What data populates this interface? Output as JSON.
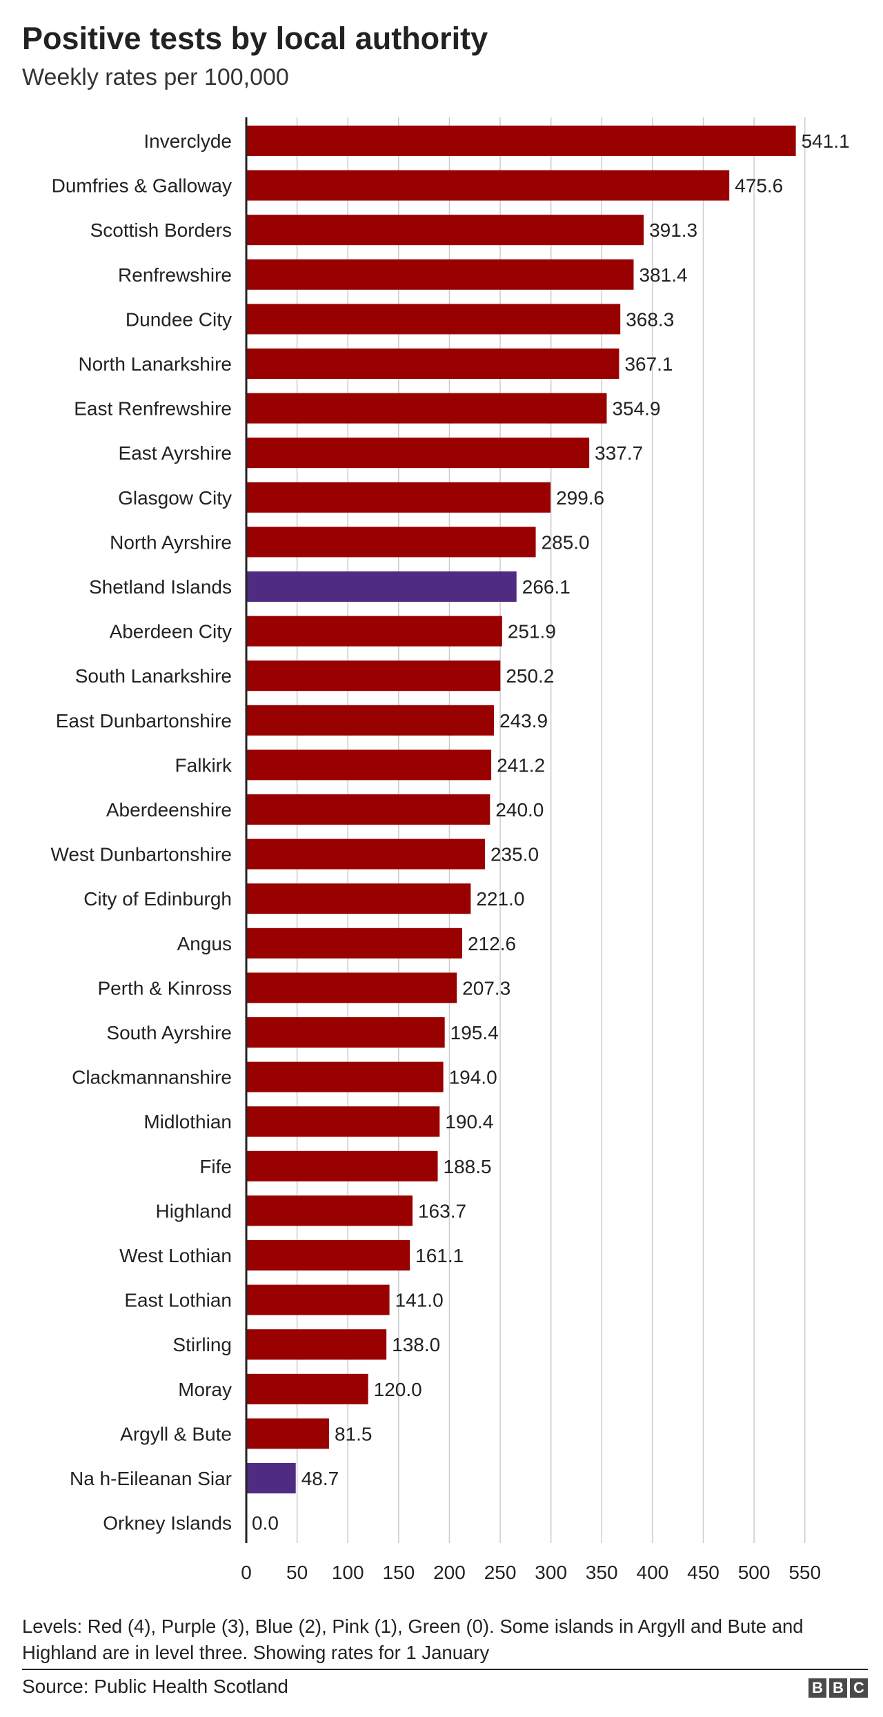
{
  "header": {
    "title": "Positive tests by local authority",
    "subtitle": "Weekly rates per 100,000"
  },
  "chart_data": {
    "type": "bar",
    "orientation": "horizontal",
    "categories": [
      "Inverclyde",
      "Dumfries & Galloway",
      "Scottish Borders",
      "Renfrewshire",
      "Dundee City",
      "North Lanarkshire",
      "East Renfrewshire",
      "East Ayrshire",
      "Glasgow City",
      "North Ayrshire",
      "Shetland Islands",
      "Aberdeen City",
      "South Lanarkshire",
      "East Dunbartonshire",
      "Falkirk",
      "Aberdeenshire",
      "West Dunbartonshire",
      "City of Edinburgh",
      "Angus",
      "Perth & Kinross",
      "South Ayrshire",
      "Clackmannanshire",
      "Midlothian",
      "Fife",
      "Highland",
      "West Lothian",
      "East Lothian",
      "Stirling",
      "Moray",
      "Argyll & Bute",
      "Na h-Eileanan Siar",
      "Orkney Islands"
    ],
    "values": [
      541.1,
      475.6,
      391.3,
      381.4,
      368.3,
      367.1,
      354.9,
      337.7,
      299.6,
      285.0,
      266.1,
      251.9,
      250.2,
      243.9,
      241.2,
      240.0,
      235.0,
      221.0,
      212.6,
      207.3,
      195.4,
      194.0,
      190.4,
      188.5,
      163.7,
      161.1,
      141.0,
      138.0,
      120.0,
      81.5,
      48.7,
      0.0
    ],
    "value_labels": [
      "541.1",
      "475.6",
      "391.3",
      "381.4",
      "368.3",
      "367.1",
      "354.9",
      "337.7",
      "299.6",
      "285.0",
      "266.1",
      "251.9",
      "250.2",
      "243.9",
      "241.2",
      "240.0",
      "235.0",
      "221.0",
      "212.6",
      "207.3",
      "195.4",
      "194.0",
      "190.4",
      "188.5",
      "163.7",
      "161.1",
      "141.0",
      "138.0",
      "120.0",
      "81.5",
      "48.7",
      "0.0"
    ],
    "levels": [
      "red",
      "red",
      "red",
      "red",
      "red",
      "red",
      "red",
      "red",
      "red",
      "red",
      "purple",
      "red",
      "red",
      "red",
      "red",
      "red",
      "red",
      "red",
      "red",
      "red",
      "red",
      "red",
      "red",
      "red",
      "red",
      "red",
      "red",
      "red",
      "red",
      "red",
      "purple",
      "green"
    ],
    "level_colors": {
      "red": "#990000",
      "purple": "#4f2c81",
      "green": "#00a650"
    },
    "xlim": [
      0,
      550
    ],
    "xticks": [
      "0",
      "50",
      "100",
      "150",
      "200",
      "250",
      "300",
      "350",
      "400",
      "450",
      "500",
      "550"
    ],
    "grid": "vertical",
    "xlabel": "",
    "ylabel": ""
  },
  "footer": {
    "notes": "Levels: Red (4), Purple (3), Blue (2), Pink (1), Green (0). Some islands in Argyll and Bute and Highland are in level three. Showing rates for 1 January",
    "source": "Source: Public Health Scotland",
    "logo_letters": [
      "B",
      "B",
      "C"
    ]
  }
}
